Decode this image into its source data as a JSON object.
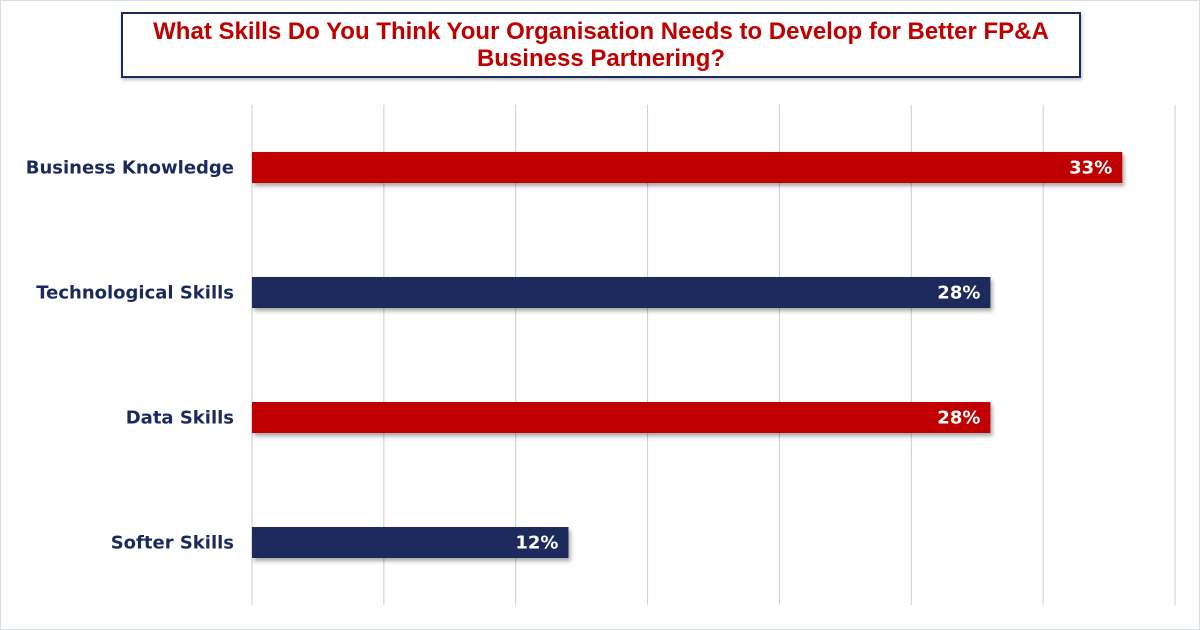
{
  "chart_data": {
    "type": "bar",
    "orientation": "horizontal",
    "title": "What Skills Do You Think Your Organisation Needs to Develop for Better FP&A Business Partnering?",
    "categories": [
      "Business Knowledge",
      "Technological Skills",
      "Data Skills",
      "Softer Skills"
    ],
    "values": [
      33,
      28,
      28,
      12
    ],
    "value_labels": [
      "33%",
      "28%",
      "28%",
      "12%"
    ],
    "bar_colors": [
      "#c00000",
      "#1b2a5c",
      "#c00000",
      "#1b2a5c"
    ],
    "xlim": [
      0,
      35
    ],
    "grid": true,
    "legend": "none"
  }
}
